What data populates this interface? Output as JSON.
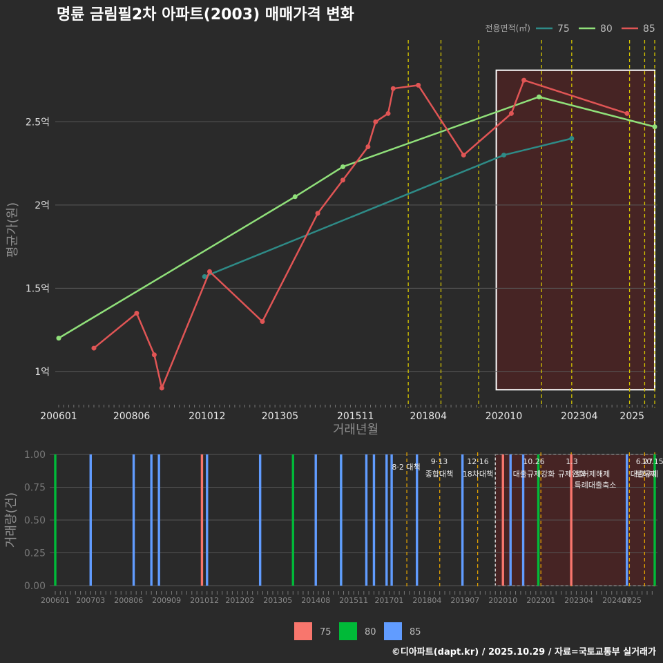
{
  "title": "명륜 금림필2차 아파트(2003) 매매가격 변화",
  "footer": "©디아파트(dapt.kr) / 2025.10.29 / 자료=국토교통부 실거래가",
  "colors": {
    "s75_top": "#2e8b87",
    "s80_top": "#90e07a",
    "s85_top": "#e05555",
    "s75_bot": "#f8766d",
    "s80_bot": "#00ba38",
    "s85_bot": "#619cff",
    "vline": "#d4c400",
    "highlight": "#5c1f1f"
  },
  "chart_data": [
    {
      "type": "line",
      "title": "명륜 금림필2차 아파트(2003) 매매가격 변화",
      "xlabel": "거래년월",
      "ylabel": "평균가(원)",
      "legend_title": "전용면적(㎡)",
      "legend_position": "top-right",
      "x_tick_labels": [
        "200601",
        "200806",
        "201012",
        "201305",
        "201511",
        "201804",
        "202010",
        "202304",
        "2025"
      ],
      "y_tick_labels": [
        "1억",
        "1.5억",
        "2억",
        "2.5억"
      ],
      "ylim_eok": [
        0.8,
        2.9
      ],
      "series": [
        {
          "name": "75",
          "points": [
            [
              "2010-11",
              1.57
            ],
            [
              "2020-10",
              2.3
            ],
            [
              "2023-01",
              2.4
            ]
          ]
        },
        {
          "name": "80",
          "points": [
            [
              "2006-01",
              1.2
            ],
            [
              "2013-11",
              2.05
            ],
            [
              "2015-06",
              2.23
            ],
            [
              "2021-12",
              2.65
            ],
            [
              "2025-10",
              2.47
            ]
          ]
        },
        {
          "name": "85",
          "points": [
            [
              "2007-03",
              1.14
            ],
            [
              "2008-08",
              1.35
            ],
            [
              "2009-03",
              1.1
            ],
            [
              "2009-06",
              0.9
            ],
            [
              "2011-01",
              1.6
            ],
            [
              "2012-10",
              1.3
            ],
            [
              "2014-08",
              1.95
            ],
            [
              "2015-06",
              2.15
            ],
            [
              "2016-04",
              2.35
            ],
            [
              "2016-07",
              2.5
            ],
            [
              "2016-12",
              2.55
            ],
            [
              "2017-02",
              2.7
            ],
            [
              "2017-12",
              2.72
            ],
            [
              "2019-06",
              2.3
            ],
            [
              "2021-01",
              2.55
            ],
            [
              "2021-06",
              2.75
            ],
            [
              "2024-11",
              2.55
            ]
          ]
        }
      ],
      "policy_lines": [
        "2017-08",
        "2018-09",
        "2019-12",
        "2022-01",
        "2023-01",
        "2024-12",
        "2025-06",
        "2025-10"
      ],
      "highlight_range": [
        "2020-07",
        "2025-10"
      ]
    },
    {
      "type": "bar",
      "ylabel": "거래량(건)",
      "legend_position": "bottom",
      "y_tick_labels": [
        "0.00",
        "0.25",
        "0.50",
        "0.75",
        "1.00"
      ],
      "x_tick_labels": [
        "200601",
        "200703",
        "200806",
        "200909",
        "201012",
        "201202",
        "201305",
        "201408",
        "201511",
        "201701",
        "201804",
        "201907",
        "202010",
        "202201",
        "202304",
        "202407",
        "2025"
      ],
      "series": [
        {
          "name": "75",
          "months": [
            "2010-11",
            "2020-10",
            "2023-01"
          ]
        },
        {
          "name": "80",
          "months": [
            "2006-01",
            "2013-11",
            "2015-06",
            "2021-12",
            "2025-10"
          ]
        },
        {
          "name": "85",
          "months": [
            "2007-03",
            "2008-08",
            "2009-03",
            "2009-06",
            "2011-01",
            "2012-10",
            "2014-08",
            "2015-06",
            "2016-04",
            "2016-07",
            "2016-12",
            "2017-02",
            "2017-12",
            "2019-06",
            "2021-01",
            "2021-06",
            "2024-11"
          ]
        }
      ],
      "policy_annotations": [
        {
          "date": "2017-08",
          "l1": "",
          "l2": "8·2 대책"
        },
        {
          "date": "2018-09",
          "l1": "9·13",
          "l2": "종합대책"
        },
        {
          "date": "2019-12",
          "l1": "12·16",
          "l2": "18차대책"
        },
        {
          "date": "2022-01",
          "l1": "10.26",
          "l2": "대출규제강화"
        },
        {
          "date": "2023-01",
          "l1": "1.3",
          "l2": "규제완화"
        },
        {
          "date": "2023-01b",
          "l1": "",
          "l2": "특례대출축소"
        },
        {
          "date": "2024-12",
          "l1": "9.7",
          "l2": "토허제해제"
        },
        {
          "date": "2025-06",
          "l1": "6.27",
          "l2": "대출규제"
        },
        {
          "date": "2025-10",
          "l1": "10.15",
          "l2": "토허제"
        }
      ]
    }
  ]
}
